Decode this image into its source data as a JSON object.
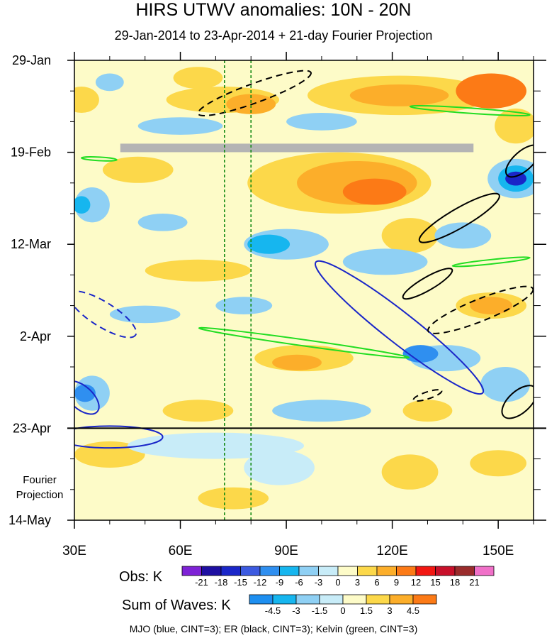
{
  "chart_data": {
    "type": "heatmap",
    "title": "HIRS UTWV anomalies: 10N - 20N",
    "subtitle": "29-Jan-2014 to 23-Apr-2014 + 21-day Fourier Projection",
    "x_ticks": [
      "30E",
      "60E",
      "90E",
      "120E",
      "150E"
    ],
    "x_tick_values": [
      30,
      60,
      90,
      120,
      150
    ],
    "xlim": [
      30,
      160
    ],
    "y_ticks": [
      "29-Jan",
      "19-Feb",
      "12-Mar",
      "2-Apr",
      "23-Apr",
      "14-May"
    ],
    "y_tick_days": [
      0,
      21,
      42,
      63,
      84,
      105
    ],
    "ylim_days": [
      0,
      105
    ],
    "projection_start_day": 84,
    "projection_label": "Fourier Projection",
    "reference_lines_lon": [
      72.5,
      80
    ],
    "obs_colorbar": {
      "label": "Obs: K",
      "levels": [
        "-21",
        "-18",
        "-15",
        "-12",
        "-9",
        "-6",
        "-3",
        "0",
        "3",
        "6",
        "9",
        "12",
        "15",
        "18",
        "21"
      ],
      "colors": [
        "#7e22d6",
        "#1e0fa2",
        "#1a26c8",
        "#3c5ae0",
        "#2f8ff0",
        "#16b6ef",
        "#8fd0f4",
        "#c8ecf8",
        "#fdfbc8",
        "#fcd84a",
        "#fcae2a",
        "#fc7a16",
        "#f21712",
        "#c8102a",
        "#9a2c2c",
        "#f070c8"
      ]
    },
    "waves_colorbar": {
      "label": "Sum of Waves: K",
      "levels": [
        "-4.5",
        "-3",
        "-1.5",
        "0",
        "1.5",
        "3",
        "4.5"
      ],
      "colors": [
        "#1e8ff0",
        "#16b6ef",
        "#8fd0f4",
        "#c8ecf8",
        "#fdfbc8",
        "#fcd84a",
        "#fcae2a",
        "#fc7a16"
      ]
    },
    "wave_legend": "MJO (blue, CINT=3); ER (black, CINT=3); Kelvin (green, CINT=3)",
    "field_blobs": [
      {
        "lon": 32,
        "day": 9,
        "rlon": 5,
        "rday": 3,
        "color": "#fcd84a"
      },
      {
        "lon": 65,
        "day": 4,
        "rlon": 7,
        "rday": 2.5,
        "color": "#fcd84a"
      },
      {
        "lon": 40,
        "day": 5,
        "rlon": 4,
        "rday": 2,
        "color": "#8fd0f4"
      },
      {
        "lon": 72,
        "day": 9,
        "rlon": 16,
        "rday": 3,
        "color": "#fcd84a"
      },
      {
        "lon": 80,
        "day": 10,
        "rlon": 7,
        "rday": 2.3,
        "color": "#fcae2a"
      },
      {
        "lon": 122,
        "day": 8,
        "rlon": 26,
        "rday": 4.5,
        "color": "#fcd84a"
      },
      {
        "lon": 122,
        "day": 8,
        "rlon": 14,
        "rday": 2.5,
        "color": "#fcae2a"
      },
      {
        "lon": 148,
        "day": 7,
        "rlon": 10,
        "rday": 4,
        "color": "#fc7a16"
      },
      {
        "lon": 155,
        "day": 15,
        "rlon": 6,
        "rday": 4,
        "color": "#fcd84a"
      },
      {
        "lon": 60,
        "day": 15,
        "rlon": 12,
        "rday": 2,
        "color": "#8fd0f4"
      },
      {
        "lon": 100,
        "day": 14,
        "rlon": 10,
        "rday": 2,
        "color": "#8fd0f4"
      },
      {
        "lon": 48,
        "day": 25,
        "rlon": 10,
        "rday": 3,
        "color": "#fcd84a"
      },
      {
        "lon": 35,
        "day": 33,
        "rlon": 5,
        "rday": 4,
        "color": "#8fd0f4"
      },
      {
        "lon": 32,
        "day": 33,
        "rlon": 2.5,
        "rday": 2,
        "color": "#16b6ef"
      },
      {
        "lon": 55,
        "day": 37,
        "rlon": 7,
        "rday": 2,
        "color": "#8fd0f4"
      },
      {
        "lon": 105,
        "day": 28,
        "rlon": 26,
        "rday": 7,
        "color": "#fcd84a"
      },
      {
        "lon": 110,
        "day": 28,
        "rlon": 17,
        "rday": 5,
        "color": "#fcae2a"
      },
      {
        "lon": 115,
        "day": 30,
        "rlon": 9,
        "rday": 3,
        "color": "#fc7a16"
      },
      {
        "lon": 125,
        "day": 40,
        "rlon": 8,
        "rday": 4,
        "color": "#fcd84a"
      },
      {
        "lon": 90,
        "day": 42,
        "rlon": 12,
        "rday": 3.5,
        "color": "#8fd0f4"
      },
      {
        "lon": 85,
        "day": 42,
        "rlon": 6,
        "rday": 2.2,
        "color": "#16b6ef"
      },
      {
        "lon": 118,
        "day": 46,
        "rlon": 12,
        "rday": 3,
        "color": "#8fd0f4"
      },
      {
        "lon": 155,
        "day": 27,
        "rlon": 8,
        "rday": 4.5,
        "color": "#8fd0f4"
      },
      {
        "lon": 155,
        "day": 27,
        "rlon": 5,
        "rday": 3,
        "color": "#16b6ef"
      },
      {
        "lon": 155,
        "day": 27,
        "rlon": 3,
        "rday": 1.6,
        "color": "#1a26c8"
      },
      {
        "lon": 140,
        "day": 40,
        "rlon": 8,
        "rday": 3,
        "color": "#8fd0f4"
      },
      {
        "lon": 148,
        "day": 56,
        "rlon": 10,
        "rday": 3,
        "color": "#fcd84a"
      },
      {
        "lon": 148,
        "day": 56,
        "rlon": 6,
        "rday": 2,
        "color": "#fcae2a"
      },
      {
        "lon": 65,
        "day": 48,
        "rlon": 15,
        "rday": 2.5,
        "color": "#fcd84a"
      },
      {
        "lon": 50,
        "day": 58,
        "rlon": 10,
        "rday": 2,
        "color": "#8fd0f4"
      },
      {
        "lon": 78,
        "day": 56,
        "rlon": 8,
        "rday": 2,
        "color": "#8fd0f4"
      },
      {
        "lon": 95,
        "day": 68,
        "rlon": 14,
        "rday": 3,
        "color": "#fcd84a"
      },
      {
        "lon": 93,
        "day": 69,
        "rlon": 7,
        "rday": 1.8,
        "color": "#fcae2a"
      },
      {
        "lon": 35,
        "day": 76,
        "rlon": 5,
        "rday": 4,
        "color": "#8fd0f4"
      },
      {
        "lon": 33,
        "day": 76,
        "rlon": 3,
        "rday": 2,
        "color": "#2f8ff0"
      },
      {
        "lon": 135,
        "day": 68,
        "rlon": 10,
        "rday": 3,
        "color": "#8fd0f4"
      },
      {
        "lon": 128,
        "day": 67,
        "rlon": 5,
        "rday": 2,
        "color": "#2f8ff0"
      },
      {
        "lon": 152,
        "day": 74,
        "rlon": 7,
        "rday": 4,
        "color": "#8fd0f4"
      },
      {
        "lon": 65,
        "day": 80,
        "rlon": 10,
        "rday": 2.5,
        "color": "#fcd84a"
      },
      {
        "lon": 100,
        "day": 80,
        "rlon": 14,
        "rday": 2.5,
        "color": "#8fd0f4"
      },
      {
        "lon": 130,
        "day": 80,
        "rlon": 7,
        "rday": 2.5,
        "color": "#fcd84a"
      },
      {
        "lon": 40,
        "day": 90,
        "rlon": 10,
        "rday": 3,
        "color": "#fcd84a"
      },
      {
        "lon": 70,
        "day": 88,
        "rlon": 25,
        "rday": 3,
        "color": "#c8ecf8"
      },
      {
        "lon": 88,
        "day": 93,
        "rlon": 10,
        "rday": 4,
        "color": "#c8ecf8"
      },
      {
        "lon": 125,
        "day": 94,
        "rlon": 8,
        "rday": 4,
        "color": "#fcd84a"
      },
      {
        "lon": 150,
        "day": 92,
        "rlon": 8,
        "rday": 3,
        "color": "#fcd84a"
      },
      {
        "lon": 75,
        "day": 100,
        "rlon": 10,
        "rday": 2.5,
        "color": "#fcd84a"
      }
    ],
    "missing_data_band": {
      "lon_from": 43,
      "lon_to": 143,
      "day": 20
    },
    "wave_contours": [
      {
        "wave": "MJO",
        "color": "#1a26c8",
        "dashed": false,
        "lon": 122,
        "day": 61,
        "rlon": 30,
        "rday": 3.5,
        "angle": 38
      },
      {
        "wave": "MJO",
        "color": "#1a26c8",
        "dashed": true,
        "lon": 38,
        "day": 58,
        "rlon": 11,
        "rday": 2.8,
        "angle": 32
      },
      {
        "wave": "MJO",
        "color": "#1a26c8",
        "dashed": false,
        "lon": 40,
        "day": 86,
        "rlon": 15,
        "rday": 2.5,
        "angle": 0
      },
      {
        "wave": "MJO",
        "color": "#1a26c8",
        "dashed": false,
        "lon": 32,
        "day": 77,
        "rlon": 6,
        "rday": 2.6,
        "angle": 42
      },
      {
        "wave": "ER",
        "color": "#000000",
        "dashed": true,
        "lon": 81,
        "day": 7.5,
        "rlon": 17,
        "rday": 2.2,
        "angle": -20
      },
      {
        "wave": "ER",
        "color": "#000000",
        "dashed": false,
        "lon": 139,
        "day": 36,
        "rlon": 13,
        "rday": 2.2,
        "angle": -30
      },
      {
        "wave": "ER",
        "color": "#000000",
        "dashed": false,
        "lon": 130,
        "day": 51,
        "rlon": 8,
        "rday": 1.5,
        "angle": -30
      },
      {
        "wave": "ER",
        "color": "#000000",
        "dashed": true,
        "lon": 145,
        "day": 57,
        "rlon": 16,
        "rday": 2.5,
        "angle": -22
      },
      {
        "wave": "ER",
        "color": "#000000",
        "dashed": true,
        "lon": 130,
        "day": 76.5,
        "rlon": 4.2,
        "rday": 0.8,
        "angle": -18
      },
      {
        "wave": "ER",
        "color": "#000000",
        "dashed": false,
        "lon": 156,
        "day": 78,
        "rlon": 6,
        "rday": 2.5,
        "angle": -42
      },
      {
        "wave": "ER",
        "color": "#000000",
        "dashed": false,
        "lon": 157,
        "day": 23,
        "rlon": 6,
        "rday": 2.2,
        "angle": -42
      },
      {
        "wave": "Kelvin",
        "color": "#22dd22",
        "dashed": false,
        "lon": 95,
        "day": 64.5,
        "rlon": 30,
        "rday": 0.7,
        "angle": 8
      },
      {
        "wave": "Kelvin",
        "color": "#22dd22",
        "dashed": false,
        "lon": 142,
        "day": 11.5,
        "rlon": 17,
        "rday": 0.6,
        "angle": 4
      },
      {
        "wave": "Kelvin",
        "color": "#22dd22",
        "dashed": false,
        "lon": 37,
        "day": 22.5,
        "rlon": 5,
        "rday": 0.4,
        "angle": 3
      },
      {
        "wave": "Kelvin",
        "color": "#22dd22",
        "dashed": false,
        "lon": 148,
        "day": 46,
        "rlon": 11,
        "rday": 0.5,
        "angle": -6
      }
    ]
  }
}
